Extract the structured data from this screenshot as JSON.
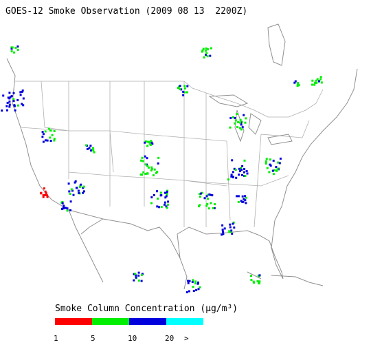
{
  "title": "GOES-12 Smoke Observation (2009 08 13  2200Z)",
  "legend": {
    "title": "Smoke Column Concentration (μg/m³)",
    "colors": [
      "#ff0000",
      "#00ee00",
      "#0000dd",
      "#00ffff"
    ],
    "labels": [
      "1",
      "5",
      "10",
      "20",
      ">"
    ]
  }
}
